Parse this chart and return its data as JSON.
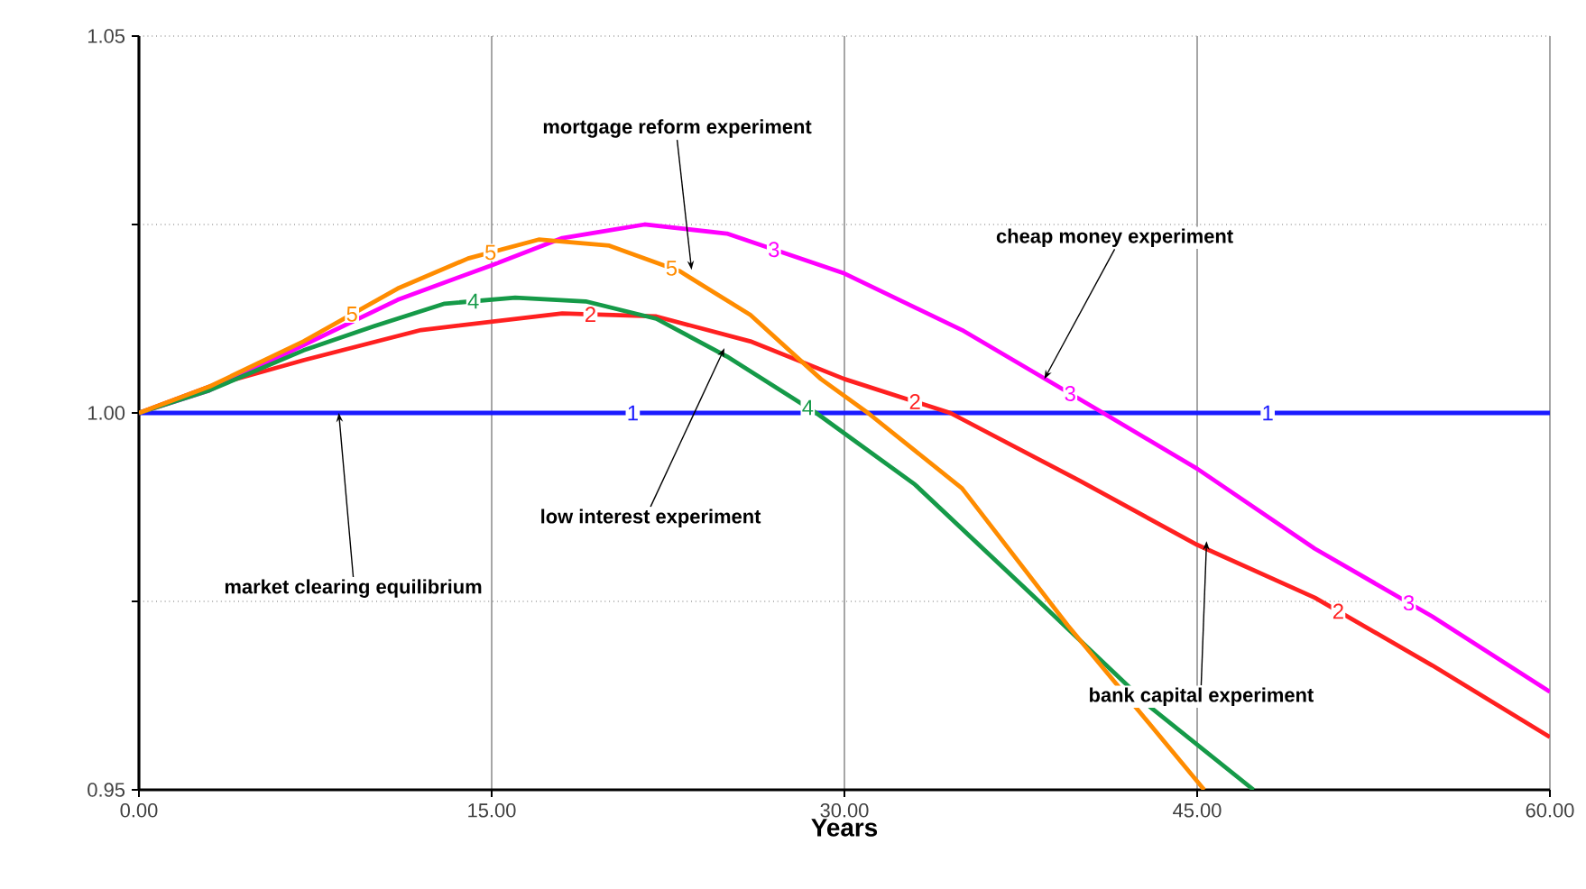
{
  "chart_data": {
    "type": "line",
    "xlabel": "Years",
    "xlim": [
      0,
      60
    ],
    "ylim": [
      0.95,
      1.05
    ],
    "xticks": [
      {
        "value": 0,
        "label": "0.00"
      },
      {
        "value": 15,
        "label": "15.00"
      },
      {
        "value": 30,
        "label": "30.00"
      },
      {
        "value": 45,
        "label": "45.00"
      },
      {
        "value": 60,
        "label": "60.00"
      }
    ],
    "yticks": [
      {
        "value": 0.95,
        "label": "0.95"
      },
      {
        "value": 0.975,
        "label": null
      },
      {
        "value": 1.0,
        "label": "1.00"
      },
      {
        "value": 1.025,
        "label": null
      },
      {
        "value": 1.05,
        "label": "1.05"
      }
    ],
    "grid": true,
    "marker": "none",
    "line_style": "solid",
    "series": [
      {
        "name": "1",
        "color": "#1a1aff",
        "x": [
          0,
          60
        ],
        "values": [
          1.0,
          1.0
        ]
      },
      {
        "name": "2",
        "color": "#ff2020",
        "x": [
          0,
          3,
          7,
          12,
          18,
          22,
          26,
          30,
          34.5,
          40,
          45,
          50,
          55,
          60
        ],
        "values": [
          1.0,
          1.0035,
          1.007,
          1.011,
          1.0132,
          1.0128,
          1.0095,
          1.0045,
          1.0,
          0.991,
          0.9825,
          0.9755,
          0.9665,
          0.957
        ]
      },
      {
        "name": "3",
        "color": "#ff00ff",
        "x": [
          0,
          3,
          7,
          11,
          15,
          18,
          21.5,
          25,
          30,
          35,
          41,
          45,
          50,
          55,
          60
        ],
        "values": [
          1.0,
          1.003,
          1.009,
          1.015,
          1.0196,
          1.0232,
          1.025,
          1.0238,
          1.0185,
          1.011,
          1.0,
          0.9926,
          0.982,
          0.973,
          0.963
        ]
      },
      {
        "name": "4",
        "color": "#159a48",
        "x": [
          0,
          3,
          7,
          10,
          13,
          16,
          19,
          22,
          25,
          28.8,
          33,
          38,
          43,
          47.4
        ],
        "values": [
          1.0,
          1.003,
          1.0083,
          1.0115,
          1.0145,
          1.0153,
          1.0148,
          1.0125,
          1.0075,
          1.0,
          0.9905,
          0.9758,
          0.961,
          0.95
        ]
      },
      {
        "name": "5",
        "color": "#ff8c00",
        "x": [
          0,
          3,
          7,
          11,
          14,
          17,
          20,
          23,
          26,
          29,
          31,
          35,
          39.5,
          45.3
        ],
        "values": [
          1.0,
          1.0035,
          1.0095,
          1.0165,
          1.0205,
          1.023,
          1.0222,
          1.0188,
          1.013,
          1.0045,
          1.0,
          0.99,
          0.9718,
          0.95
        ]
      }
    ],
    "annotations": [
      {
        "text": "mortgage reform experiment",
        "x": 23.5,
        "y": 1.019
      },
      {
        "text": "cheap money experiment",
        "x": 38.5,
        "y": 1.0045
      },
      {
        "text": "low interest experiment",
        "x": 24.9,
        "y": 1.0086
      },
      {
        "text": "market clearing equilibrium",
        "x": 8.5,
        "y": 1.0
      },
      {
        "text": "bank capital experiment",
        "x": 45.4,
        "y": 0.983
      }
    ]
  }
}
